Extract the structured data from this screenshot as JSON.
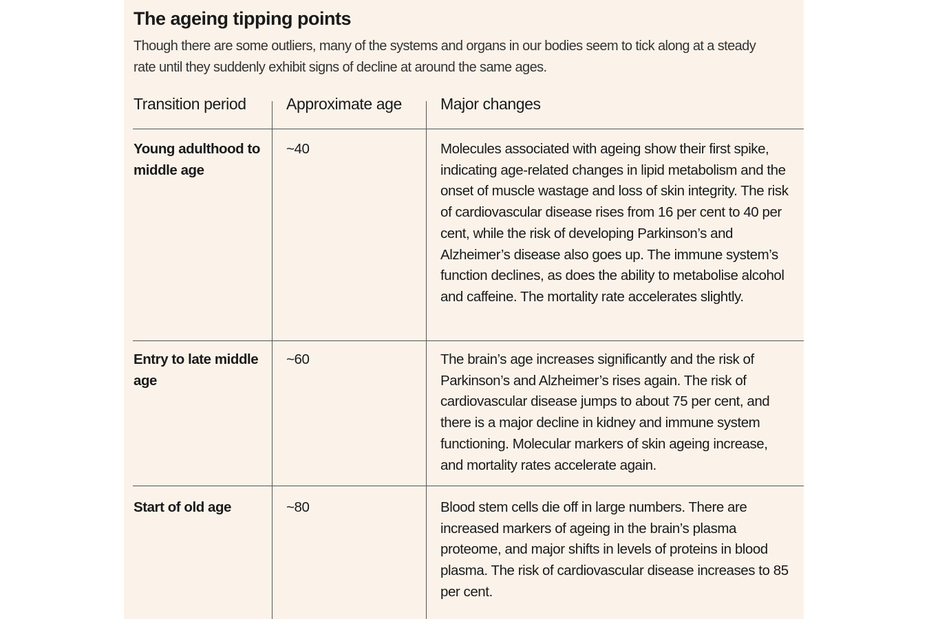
{
  "header": {
    "title": "The ageing tipping points",
    "subtitle": "Though there are some outliers, many of the systems and organs in our bodies seem to tick along at a steady rate until they suddenly exhibit signs of decline at around the same ages."
  },
  "table": {
    "columns": [
      "Transition period",
      "Approximate age",
      "Major changes"
    ],
    "rows": [
      [
        "Young adulthood to middle age",
        "~40",
        "Molecules associated with ageing show their first spike, indicating age-related changes in lipid metabolism and the onset of muscle wastage and loss of skin integrity. The risk of cardiovascular disease rises from 16 per cent to 40 per cent, while the risk of developing Parkinson’s and Alzheimer’s disease also goes up. The immune system’s function declines, as does the ability to metabolise alcohol and caffeine. The mortality rate accelerates slightly."
      ],
      [
        "Entry to late middle age",
        "~60",
        "The brain’s age increases significantly and the risk of Parkinson’s and Alzheimer’s rises again. The risk of cardiovascular disease jumps to about 75 per cent, and there is a major decline in kidney and immune system functioning. Molecular markers of skin ageing increase, and mortality rates accelerate again."
      ],
      [
        "Start of old age",
        "~80",
        "Blood stem cells die off in large numbers. There are increased markers of ageing in the brain’s plasma proteome, and major shifts in levels of proteins in blood plasma. The risk of cardiovascular disease increases to 85 per cent."
      ]
    ]
  }
}
